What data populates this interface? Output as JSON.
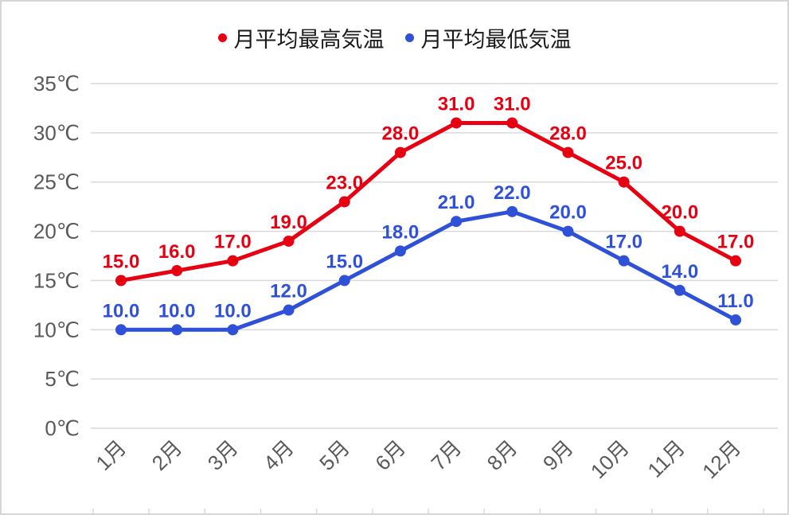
{
  "chart_data": {
    "type": "line",
    "categories": [
      "1月",
      "2月",
      "3月",
      "4月",
      "5月",
      "6月",
      "7月",
      "8月",
      "9月",
      "10月",
      "11月",
      "12月"
    ],
    "series": [
      {
        "name": "月平均最高気温",
        "color": "#e60012",
        "values": [
          15.0,
          16.0,
          17.0,
          19.0,
          23.0,
          28.0,
          31.0,
          31.0,
          28.0,
          25.0,
          20.0,
          17.0
        ]
      },
      {
        "name": "月平均最低気温",
        "color": "#2e51d8",
        "values": [
          10.0,
          10.0,
          10.0,
          12.0,
          15.0,
          18.0,
          21.0,
          22.0,
          20.0,
          17.0,
          14.0,
          11.0
        ]
      }
    ],
    "y_axis": {
      "min": 0,
      "max": 35,
      "ticks": [
        {
          "v": 0,
          "label": "0℃"
        },
        {
          "v": 5,
          "label": "5℃"
        },
        {
          "v": 10,
          "label": "10℃"
        },
        {
          "v": 15,
          "label": "15℃"
        },
        {
          "v": 20,
          "label": "20℃"
        },
        {
          "v": 25,
          "label": "25℃"
        },
        {
          "v": 30,
          "label": "30℃"
        },
        {
          "v": 35,
          "label": "35℃"
        }
      ]
    },
    "title": "",
    "xlabel": "",
    "ylabel": "",
    "legend_position": "top",
    "grid": true,
    "data_label_decimals": 1,
    "colors": {
      "grid": "#d9d9d9",
      "axis_text": "#595959",
      "frame_border": "#d6d6d6",
      "background": "#ffffff"
    }
  }
}
